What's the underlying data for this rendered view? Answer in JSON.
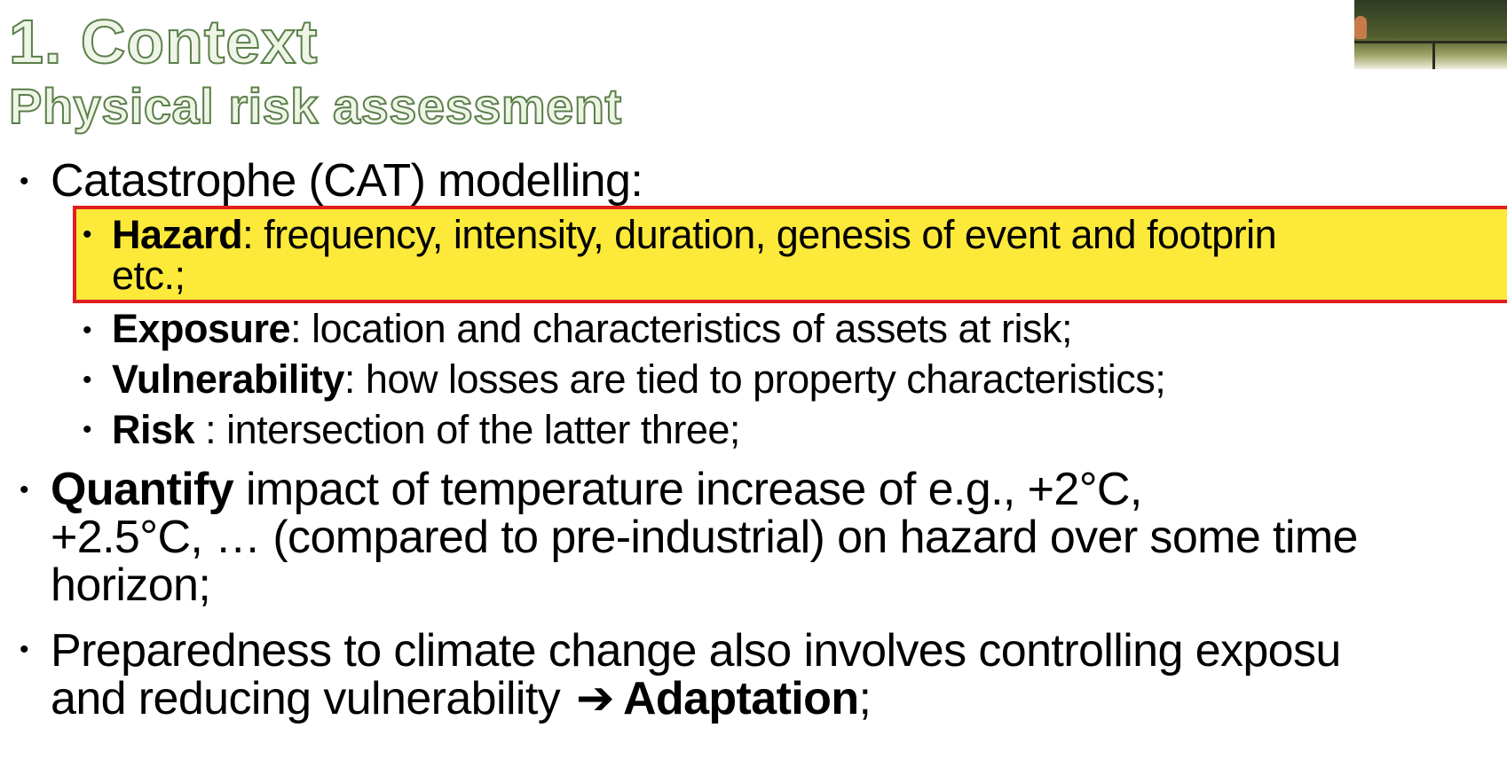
{
  "slide": {
    "title": "1. Context",
    "subtitle": "Physical risk assessment"
  },
  "bullets": {
    "cat_modelling": "Catastrophe (CAT) modelling:",
    "hazard": {
      "term": "Hazard",
      "text_line1": ": frequency, intensity, duration, genesis of event and footprin",
      "text_line2": "etc.;"
    },
    "exposure": {
      "term": "Exposure",
      "text": ": location and characteristics of assets at risk;"
    },
    "vulnerability": {
      "term": "Vulnerability",
      "text": ": how losses are tied to property characteristics;"
    },
    "risk": {
      "term": "Risk",
      "text": " : intersection of the latter three;"
    },
    "quantify": {
      "term": "Quantify",
      "text_line1": " impact of temperature increase of e.g., +2°C,",
      "text_line2": "+2.5°C, … (compared to pre-industrial) on hazard over some time",
      "text_line3": "horizon;"
    },
    "preparedness": {
      "text_line1": "Preparedness to climate change also involves controlling exposu",
      "text_line2": "and reducing vulnerability",
      "arrow": "➔",
      "term": "Adaptation",
      "end": ";"
    }
  },
  "bullet_symbol": "•",
  "colors": {
    "title_fill": "#eef5e6",
    "title_outline": "#5b7f4a",
    "highlight_fill": "#fde93a",
    "highlight_border": "#e02020"
  }
}
